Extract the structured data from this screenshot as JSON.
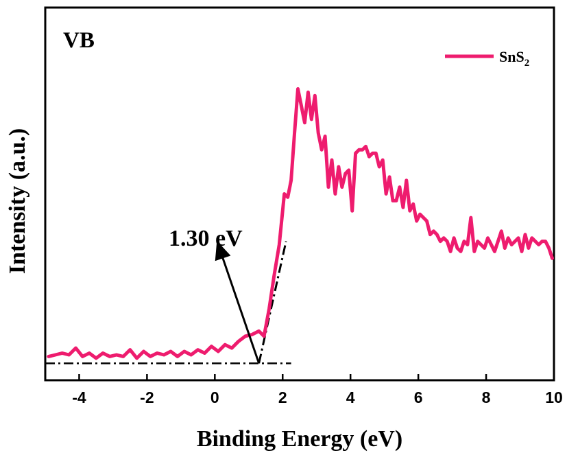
{
  "chart_data": {
    "type": "line",
    "title": "",
    "panel_label": "VB",
    "xlabel": "Binding Energy (eV)",
    "ylabel": "Intensity (a.u.)",
    "xlim": [
      -5,
      10
    ],
    "ylim": [
      -0.5,
      10.5
    ],
    "x_ticks": [
      -4,
      -2,
      0,
      2,
      4,
      6,
      8,
      10
    ],
    "y_ticks_shown": false,
    "grid": false,
    "legend": {
      "position": "top-right",
      "name": "SnS",
      "subscript": "2"
    },
    "series": [
      {
        "name": "SnS2",
        "color": "#ee1c6e",
        "x": [
          -4.9,
          -4.7,
          -4.5,
          -4.3,
          -4.1,
          -3.9,
          -3.7,
          -3.5,
          -3.3,
          -3.1,
          -2.9,
          -2.7,
          -2.5,
          -2.3,
          -2.1,
          -1.9,
          -1.7,
          -1.5,
          -1.3,
          -1.1,
          -0.9,
          -0.7,
          -0.5,
          -0.3,
          -0.1,
          0.1,
          0.3,
          0.5,
          0.7,
          0.9,
          1.1,
          1.3,
          1.45,
          1.6,
          1.75,
          1.9,
          2.05,
          2.15,
          2.25,
          2.35,
          2.45,
          2.55,
          2.65,
          2.75,
          2.85,
          2.95,
          3.05,
          3.15,
          3.25,
          3.35,
          3.45,
          3.55,
          3.65,
          3.75,
          3.85,
          3.95,
          4.05,
          4.15,
          4.25,
          4.35,
          4.45,
          4.55,
          4.65,
          4.75,
          4.85,
          4.95,
          5.05,
          5.15,
          5.25,
          5.35,
          5.45,
          5.55,
          5.65,
          5.75,
          5.85,
          5.95,
          6.05,
          6.15,
          6.25,
          6.35,
          6.45,
          6.55,
          6.65,
          6.75,
          6.85,
          6.95,
          7.05,
          7.15,
          7.25,
          7.35,
          7.45,
          7.55,
          7.65,
          7.75,
          7.85,
          7.95,
          8.05,
          8.15,
          8.25,
          8.35,
          8.45,
          8.55,
          8.65,
          8.75,
          8.85,
          8.95,
          9.05,
          9.15,
          9.25,
          9.35,
          9.45,
          9.55,
          9.65,
          9.75,
          9.85,
          9.95
        ],
        "y": [
          0.2,
          0.25,
          0.3,
          0.25,
          0.45,
          0.2,
          0.3,
          0.15,
          0.3,
          0.2,
          0.25,
          0.2,
          0.4,
          0.15,
          0.35,
          0.2,
          0.3,
          0.25,
          0.35,
          0.2,
          0.35,
          0.25,
          0.4,
          0.3,
          0.5,
          0.35,
          0.55,
          0.45,
          0.65,
          0.8,
          0.85,
          0.95,
          0.8,
          1.6,
          2.6,
          3.5,
          5.0,
          4.9,
          5.4,
          6.8,
          8.1,
          7.6,
          7.1,
          8.0,
          7.2,
          7.9,
          6.8,
          6.3,
          6.7,
          5.2,
          6.0,
          5.0,
          5.8,
          5.2,
          5.6,
          5.7,
          4.5,
          6.2,
          6.3,
          6.3,
          6.4,
          6.1,
          6.2,
          6.2,
          5.8,
          6.0,
          5.0,
          5.5,
          4.8,
          4.8,
          5.2,
          4.6,
          5.4,
          4.5,
          4.7,
          4.2,
          4.4,
          4.3,
          4.2,
          3.8,
          3.9,
          3.8,
          3.6,
          3.7,
          3.6,
          3.3,
          3.7,
          3.4,
          3.3,
          3.6,
          3.5,
          4.3,
          3.3,
          3.6,
          3.5,
          3.4,
          3.7,
          3.5,
          3.3,
          3.6,
          3.9,
          3.4,
          3.7,
          3.5,
          3.6,
          3.7,
          3.3,
          3.8,
          3.4,
          3.7,
          3.6,
          3.5,
          3.6,
          3.6,
          3.4,
          3.1
        ]
      }
    ],
    "annotations": [
      {
        "text": "1.30 eV",
        "point": [
          1.3,
          0
        ],
        "arrow_tip": [
          0.1,
          3.5
        ]
      }
    ],
    "baseline_line": {
      "x": [
        -5,
        2.25
      ],
      "y": 0
    },
    "tangent_line": {
      "x": [
        1.3,
        2.1
      ],
      "y": [
        0,
        3.6
      ]
    }
  }
}
